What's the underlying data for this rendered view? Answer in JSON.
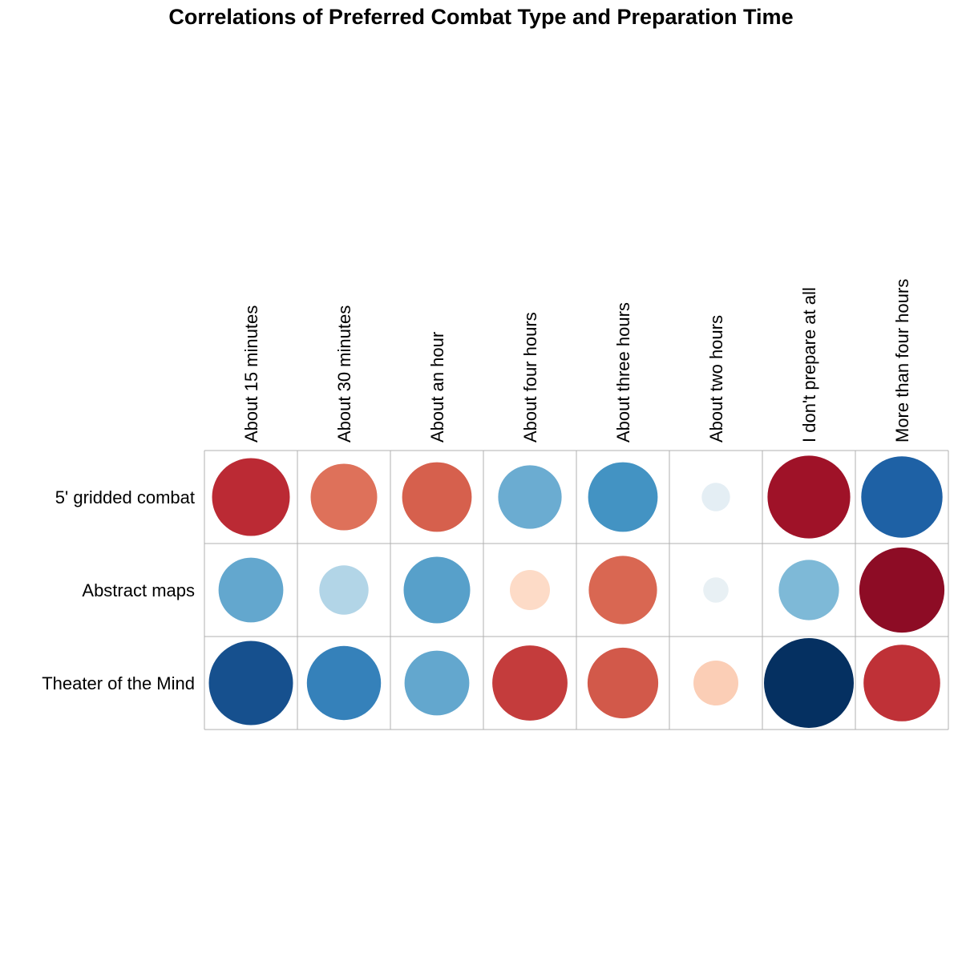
{
  "chart_data": {
    "type": "heatmap",
    "subtype": "correlation-circles",
    "title": "Correlations of Preferred Combat Type and Preparation Time",
    "columns": [
      "About 15 minutes",
      "About 30 minutes",
      "About an hour",
      "About four hours",
      "About three hours",
      "About two hours",
      "I don't prepare at all",
      "More than four hours"
    ],
    "rows": [
      "5' gridded combat",
      "Abstract maps",
      "Theater of the Mind"
    ],
    "values": [
      [
        0.75,
        0.55,
        0.6,
        -0.5,
        -0.6,
        -0.1,
        0.85,
        -0.82
      ],
      [
        -0.52,
        -0.3,
        -0.55,
        0.2,
        0.58,
        -0.08,
        -0.45,
        0.9
      ],
      [
        -0.88,
        -0.68,
        -0.52,
        0.7,
        0.62,
        0.25,
        -1.0,
        0.73
      ]
    ],
    "color_scale": {
      "name": "RdBu",
      "negative": "#053061",
      "neutral": "#f7f7f7",
      "positive": "#67001f"
    },
    "grid": true,
    "legend": "none"
  }
}
